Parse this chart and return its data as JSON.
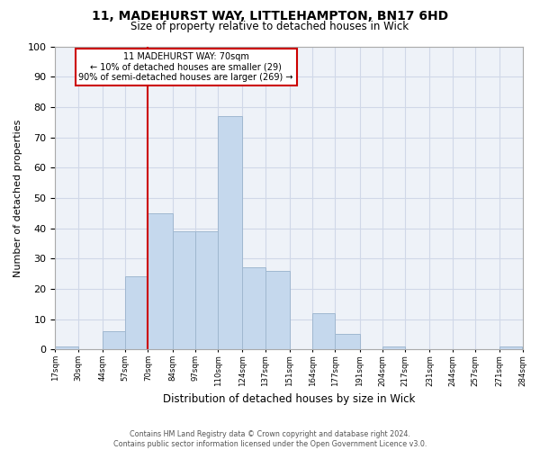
{
  "title_line1": "11, MADEHURST WAY, LITTLEHAMPTON, BN17 6HD",
  "title_line2": "Size of property relative to detached houses in Wick",
  "xlabel": "Distribution of detached houses by size in Wick",
  "ylabel": "Number of detached properties",
  "bin_edges": [
    17,
    30,
    44,
    57,
    70,
    84,
    97,
    110,
    124,
    137,
    151,
    164,
    177,
    191,
    204,
    217,
    231,
    244,
    257,
    271,
    284
  ],
  "bar_heights": [
    1,
    0,
    6,
    24,
    45,
    39,
    39,
    77,
    27,
    26,
    0,
    12,
    5,
    0,
    1,
    0,
    0,
    0,
    0,
    1
  ],
  "bar_color": "#c5d8ed",
  "bar_edge_color": "#a0b8d0",
  "ylim": [
    0,
    100
  ],
  "yticks": [
    0,
    10,
    20,
    30,
    40,
    50,
    60,
    70,
    80,
    90,
    100
  ],
  "property_size": 70,
  "vline_color": "#cc0000",
  "annotation_text_line1": "11 MADEHURST WAY: 70sqm",
  "annotation_text_line2": "← 10% of detached houses are smaller (29)",
  "annotation_text_line3": "90% of semi-detached houses are larger (269) →",
  "annotation_box_color": "#cc0000",
  "tick_labels": [
    "17sqm",
    "30sqm",
    "44sqm",
    "57sqm",
    "70sqm",
    "84sqm",
    "97sqm",
    "110sqm",
    "124sqm",
    "137sqm",
    "151sqm",
    "164sqm",
    "177sqm",
    "191sqm",
    "204sqm",
    "217sqm",
    "231sqm",
    "244sqm",
    "257sqm",
    "271sqm",
    "284sqm"
  ],
  "footer_line1": "Contains HM Land Registry data © Crown copyright and database right 2024.",
  "footer_line2": "Contains public sector information licensed under the Open Government Licence v3.0.",
  "grid_color": "#d0d8e8",
  "bg_color": "#eef2f8"
}
